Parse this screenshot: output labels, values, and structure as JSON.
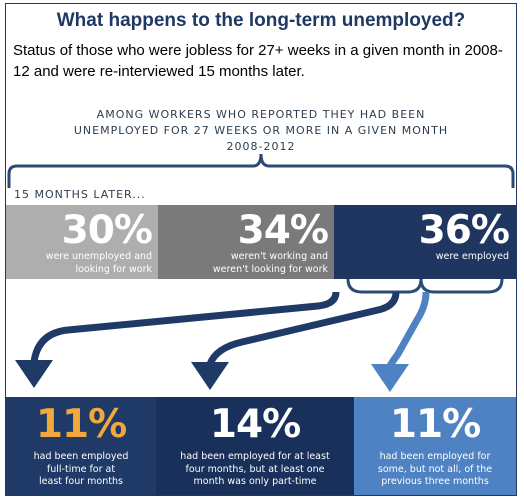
{
  "header": {
    "title": "What happens to the long-term unemployed?",
    "subtitle": "Status of those who were jobless for 27+ weeks in a given month in 2008-12 and were re-interviewed 15 months later."
  },
  "intro": {
    "lines": [
      "AMONG WORKERS WHO REPORTED THEY HAD BEEN",
      "UNEMPLOYED FOR 27 WEEKS OR MORE IN A GIVEN MONTH",
      "2008-2012"
    ]
  },
  "later_label": "15 MONTHS LATER...",
  "outcomes": [
    {
      "value": "30%",
      "text": [
        "were unemployed and",
        "looking for work"
      ],
      "color": "#aeaeae"
    },
    {
      "value": "34%",
      "text": [
        "weren't working and",
        "weren't looking for work"
      ],
      "color": "#7a7a7a"
    },
    {
      "value": "36%",
      "text": [
        "were employed"
      ],
      "color": "#1e3660"
    }
  ],
  "employed_breakdown": [
    {
      "value": "11%",
      "text": [
        "had been employed",
        "full-time for at",
        "least four months"
      ],
      "color": "#1f3a66",
      "value_color": "#f2a93b"
    },
    {
      "value": "14%",
      "text": [
        "had been employed for at least",
        "four months, but at least one",
        "month was only part-time"
      ],
      "color": "#19305a"
    },
    {
      "value": "11%",
      "text": [
        "had been employed for",
        "some, but not all, of the",
        "previous three months"
      ],
      "color": "#4f82c2"
    }
  ],
  "colors": {
    "bracket": "#2c4a73",
    "arrow_dark": "#1f3a66",
    "arrow_light": "#4f82c2"
  }
}
